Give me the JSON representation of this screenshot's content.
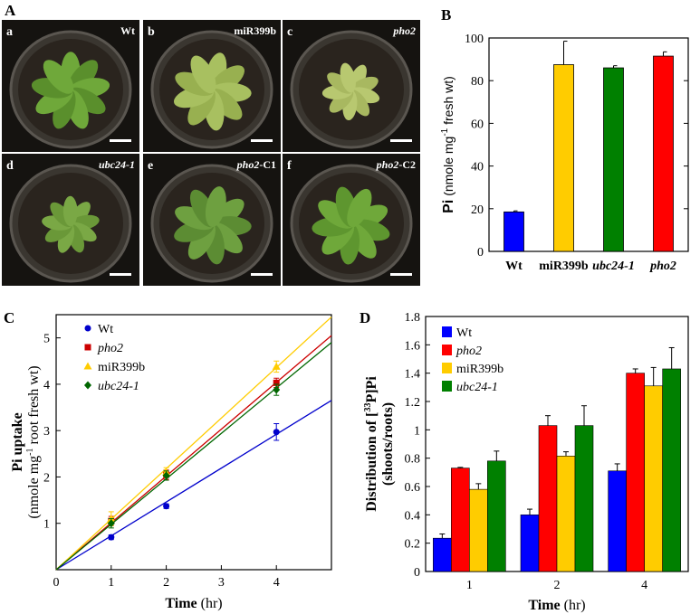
{
  "panels": {
    "A": "A",
    "B": "B",
    "C": "C",
    "D": "D"
  },
  "photos": [
    {
      "letter": "a",
      "label": "Wt",
      "italic": false,
      "label_plain": ""
    },
    {
      "letter": "b",
      "label": "miR399b",
      "italic": false,
      "label_plain": ""
    },
    {
      "letter": "c",
      "label": "pho2",
      "italic": true,
      "label_plain": ""
    },
    {
      "letter": "d",
      "label": "ubc24-1",
      "italic": true,
      "label_plain": ""
    },
    {
      "letter": "e",
      "label": "pho2",
      "italic": true,
      "label_plain": "-C1"
    },
    {
      "letter": "f",
      "label": "pho2",
      "italic": true,
      "label_plain": "-C2"
    }
  ],
  "chart_data": [
    {
      "id": "B",
      "type": "bar",
      "categories": [
        "Wt",
        "miR399b",
        "ubc24-1",
        "pho2"
      ],
      "italic_categories": [
        false,
        false,
        true,
        true
      ],
      "values": [
        18.5,
        87.5,
        86,
        91.5
      ],
      "errors": [
        0.5,
        11,
        1,
        2
      ],
      "colors": [
        "#0000ff",
        "#ffcc00",
        "#008000",
        "#ff0000"
      ],
      "ylim": [
        0,
        100
      ],
      "yticks": [
        0,
        20,
        40,
        60,
        80,
        100
      ],
      "ylabel_bold": "Pi",
      "ylabel_rest": " (nmole mg",
      "ylabel_sup": "-1",
      "ylabel_end": " fresh wt)",
      "xlabel": "",
      "title": ""
    },
    {
      "id": "C",
      "type": "scatter",
      "x": [
        1,
        2,
        4
      ],
      "series": [
        {
          "name": "Wt",
          "italic": false,
          "color": "#0000cc",
          "marker": "circle",
          "values": [
            0.7,
            1.37,
            2.97
          ],
          "errors": [
            0.05,
            0.05,
            0.18
          ],
          "fit_slope": 0.73
        },
        {
          "name": "pho2",
          "italic": true,
          "color": "#cc0000",
          "marker": "square",
          "values": [
            1.05,
            2.05,
            4.03
          ],
          "errors": [
            0.1,
            0.1,
            0.1
          ],
          "fit_slope": 1.01
        },
        {
          "name": "miR399b",
          "italic": false,
          "color": "#ffcc00",
          "marker": "triangle",
          "values": [
            1.1,
            2.1,
            4.38
          ],
          "errors": [
            0.15,
            0.1,
            0.12
          ],
          "fit_slope": 1.09
        },
        {
          "name": "ubc24-1",
          "italic": true,
          "color": "#006600",
          "marker": "diamond",
          "values": [
            1.0,
            2.03,
            3.88
          ],
          "errors": [
            0.1,
            0.1,
            0.12
          ],
          "fit_slope": 0.98
        }
      ],
      "xlim": [
        0,
        5
      ],
      "ylim": [
        0,
        5.5
      ],
      "xticks": [
        0,
        1,
        2,
        3,
        4
      ],
      "yticks": [
        0,
        1,
        2,
        3,
        4,
        5
      ],
      "xlabel_bold": "Time",
      "xlabel_rest": " (hr)",
      "ylabel_line1": "Pi uptake",
      "ylabel_line2_a": "(nmole mg",
      "ylabel_line2_sup": "-1",
      "ylabel_line2_b": " root fresh wt)",
      "legend_placement": "top-left"
    },
    {
      "id": "D",
      "type": "bar",
      "categories": [
        "1",
        "2",
        "4"
      ],
      "series": [
        {
          "name": "Wt",
          "italic": false,
          "color": "#0000ff",
          "values": [
            0.235,
            0.4,
            0.71
          ],
          "errors": [
            0.03,
            0.04,
            0.05
          ]
        },
        {
          "name": "pho2",
          "italic": true,
          "color": "#ff0000",
          "values": [
            0.73,
            1.03,
            1.4
          ],
          "errors": [
            0.005,
            0.07,
            0.03
          ]
        },
        {
          "name": "miR399b",
          "italic": false,
          "color": "#ffcc00",
          "values": [
            0.58,
            0.815,
            1.31
          ],
          "errors": [
            0.04,
            0.03,
            0.13
          ]
        },
        {
          "name": "ubc24-1",
          "italic": true,
          "color": "#008000",
          "values": [
            0.78,
            1.03,
            1.43
          ],
          "errors": [
            0.07,
            0.14,
            0.15
          ]
        }
      ],
      "ylim": [
        0,
        1.8
      ],
      "yticks": [
        "0",
        "0.2",
        "0.4",
        "0.6",
        "0.8",
        "1",
        "1.2",
        "1.4",
        "1.6",
        "1.8"
      ],
      "xlabel_bold": "Time",
      "xlabel_rest": " (hr)",
      "ylabel_line1_a": "Distribution of [",
      "ylabel_line1_sup": "33",
      "ylabel_line1_b": "P]Pi",
      "ylabel_line2": "(shoots/roots)",
      "legend_placement": "top-left"
    }
  ]
}
